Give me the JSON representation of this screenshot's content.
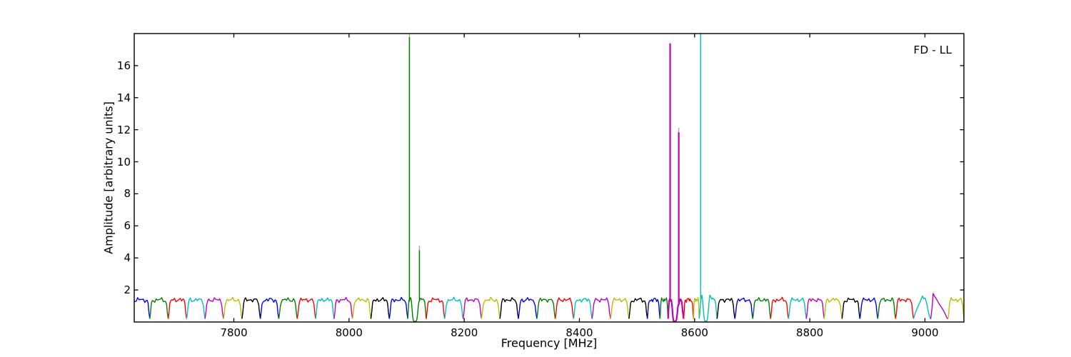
{
  "corner_label": "FD - LL",
  "chart_data": {
    "type": "line",
    "title": "",
    "xlabel": "Frequency [MHz]",
    "ylabel": "Amplitude [arbitrary units]",
    "xlim": [
      7627,
      9067.6
    ],
    "ylim": [
      0,
      18
    ],
    "xticks": [
      7800,
      8000,
      8200,
      8400,
      8600,
      8800,
      9000
    ],
    "yticks": [
      2,
      4,
      6,
      8,
      10,
      12,
      14,
      16
    ],
    "grid": false,
    "legend_position": "none",
    "tick_direction": "in",
    "frame_color": "#000000",
    "palette": {
      "b": "#0000ff",
      "g": "#008000",
      "r": "#ff0000",
      "c": "#00bfbf",
      "m": "#bf00bf",
      "y": "#bdbd00",
      "k": "#000000",
      "gray": "#b3b3b3"
    },
    "subband_width_mhz": 32,
    "baseline_amplitude": 1.4,
    "band_profile_normal": [
      [
        0,
        0.2
      ],
      [
        0.04,
        0.55
      ],
      [
        0.09,
        1.12
      ],
      [
        0.14,
        1.32
      ],
      [
        0.2,
        1.4
      ],
      [
        0.27,
        1.32
      ],
      [
        0.34,
        1.42
      ],
      [
        0.42,
        1.35
      ],
      [
        0.5,
        1.43
      ],
      [
        0.58,
        1.36
      ],
      [
        0.65,
        1.42
      ],
      [
        0.73,
        1.33
      ],
      [
        0.8,
        1.4
      ],
      [
        0.86,
        1.3
      ],
      [
        0.91,
        1.1
      ],
      [
        0.95,
        0.6
      ],
      [
        1,
        0.2
      ]
    ],
    "profiles_custom": {
      "saw_c": [
        [
          0,
          0.2
        ],
        [
          0.1,
          0.55
        ],
        [
          0.25,
          0.95
        ],
        [
          0.4,
          1.3
        ],
        [
          0.52,
          1.62
        ],
        [
          0.6,
          1.45
        ],
        [
          0.68,
          1.5
        ],
        [
          0.78,
          1.1
        ],
        [
          0.85,
          0.7
        ],
        [
          0.93,
          0.35
        ],
        [
          1,
          0.18
        ]
      ],
      "saw_m": [
        [
          0,
          0.2
        ],
        [
          0.08,
          0.9
        ],
        [
          0.14,
          1.78
        ],
        [
          0.22,
          1.6
        ],
        [
          0.32,
          1.45
        ],
        [
          0.45,
          1.2
        ],
        [
          0.6,
          0.95
        ],
        [
          0.72,
          0.75
        ],
        [
          0.82,
          0.55
        ],
        [
          0.92,
          0.3
        ],
        [
          1,
          0.18
        ]
      ]
    },
    "spiky_band_points": {
      "spiky_g": [
        [
          8102,
          0.2
        ],
        [
          8102.6,
          0.6
        ],
        [
          8103.4,
          1.15
        ],
        [
          8104.2,
          1.38
        ],
        [
          8104.8,
          1.35
        ],
        [
          8104.8,
          17.75
        ],
        [
          8104.8,
          1.3
        ],
        [
          8105.6,
          1.42
        ],
        [
          8106.6,
          1.52
        ],
        [
          8107.6,
          1.45
        ],
        [
          8108.4,
          1.25
        ],
        [
          8109.4,
          0.8
        ],
        [
          8110.6,
          0.3
        ],
        [
          8112,
          0.07
        ],
        [
          8114,
          0.03
        ],
        [
          8116,
          0.04
        ],
        [
          8117.6,
          0.12
        ],
        [
          8119,
          0.5
        ],
        [
          8120.4,
          1.05
        ],
        [
          8121.4,
          1.28
        ],
        [
          8122.2,
          1.3
        ],
        [
          8122.2,
          4.45
        ],
        [
          8122.2,
          1.3
        ],
        [
          8123.2,
          1.42
        ],
        [
          8124.6,
          1.48
        ],
        [
          8126.4,
          1.4
        ],
        [
          8128.2,
          1.44
        ],
        [
          8130,
          1.38
        ],
        [
          8131.4,
          1.25
        ],
        [
          8132.6,
          0.85
        ],
        [
          8133.4,
          0.45
        ],
        [
          8134,
          0.2
        ]
      ],
      "spiky_m": [
        [
          8554,
          0.2
        ],
        [
          8554.8,
          0.75
        ],
        [
          8555.6,
          1.3
        ],
        [
          8556.6,
          1.42
        ],
        [
          8557.5,
          1.4
        ],
        [
          8557.5,
          17.35
        ],
        [
          8557.5,
          1.35
        ],
        [
          8558.4,
          1.3
        ],
        [
          8559.4,
          1.38
        ],
        [
          8560.4,
          1.15
        ],
        [
          8561.4,
          0.75
        ],
        [
          8562.4,
          0.3
        ],
        [
          8563.6,
          0.06
        ],
        [
          8565.4,
          0.03
        ],
        [
          8567.2,
          0.05
        ],
        [
          8568.6,
          0.15
        ],
        [
          8569.8,
          0.5
        ],
        [
          8571,
          0.95
        ],
        [
          8572,
          1.1
        ],
        [
          8572.5,
          1.1
        ],
        [
          8572.5,
          11.8
        ],
        [
          8572.5,
          1.1
        ],
        [
          8573.6,
          1.25
        ],
        [
          8575,
          1.42
        ],
        [
          8576.6,
          1.38
        ],
        [
          8578,
          1.2
        ],
        [
          8579.2,
          0.7
        ],
        [
          8581,
          0.2
        ]
      ],
      "spiky_c": [
        [
          8608,
          0.2
        ],
        [
          8609,
          0.55
        ],
        [
          8610,
          1.1
        ],
        [
          8610.5,
          1.25
        ],
        [
          8610.5,
          18.6
        ],
        [
          8610.5,
          1.25
        ],
        [
          8611.5,
          1.55
        ],
        [
          8612.5,
          1.68
        ],
        [
          8613.5,
          1.45
        ],
        [
          8614.5,
          1.05
        ],
        [
          8615.8,
          0.5
        ],
        [
          8617,
          0.12
        ],
        [
          8619,
          0.04
        ],
        [
          8621,
          0.06
        ],
        [
          8622.4,
          0.2
        ],
        [
          8623.8,
          0.7
        ],
        [
          8625.2,
          1.3
        ],
        [
          8626.6,
          1.68
        ],
        [
          8628,
          1.58
        ],
        [
          8629.6,
          1.42
        ],
        [
          8631.4,
          1.5
        ],
        [
          8633.2,
          1.44
        ],
        [
          8635,
          1.38
        ],
        [
          8636.4,
          1.2
        ],
        [
          8637.6,
          0.75
        ],
        [
          8639,
          0.2
        ]
      ]
    },
    "gray_tips": [
      {
        "f": 8104.8,
        "v0": 1.4,
        "v1": 18.6
      },
      {
        "f": 8122.2,
        "v0": 1.3,
        "v1": 4.78
      },
      {
        "f": 8572.5,
        "v0": 1.1,
        "v1": 12.12
      }
    ],
    "spike_features": [
      {
        "freq": 8105,
        "amplitude": 17.8,
        "color": "g",
        "clipped": false
      },
      {
        "freq": 8122,
        "amplitude": 4.5,
        "color": "g",
        "clipped": false
      },
      {
        "freq": 8557,
        "amplitude": 17.4,
        "color": "m",
        "clipped": false
      },
      {
        "freq": 8572,
        "amplitude": 11.8,
        "color": "m",
        "clipped": false
      },
      {
        "freq": 8610,
        "amplitude": 18,
        "color": "c",
        "clipped": true
      }
    ],
    "bands": [
      [
        "b",
        7622,
        7654,
        "n"
      ],
      [
        "g",
        7654,
        7686,
        "n"
      ],
      [
        "r",
        7686,
        7718,
        "n"
      ],
      [
        "c",
        7718,
        7750,
        "n"
      ],
      [
        "m",
        7750,
        7782,
        "n"
      ],
      [
        "y",
        7782,
        7814,
        "n"
      ],
      [
        "k",
        7814,
        7846,
        "n"
      ],
      [
        "b",
        7846,
        7878,
        "n"
      ],
      [
        "g",
        7878,
        7910,
        "n"
      ],
      [
        "r",
        7910,
        7942,
        "n"
      ],
      [
        "c",
        7942,
        7974,
        "n"
      ],
      [
        "m",
        7974,
        8006,
        "n"
      ],
      [
        "y",
        8006,
        8038,
        "n"
      ],
      [
        "k",
        8038,
        8070,
        "n"
      ],
      [
        "b",
        8070,
        8102,
        "n"
      ],
      [
        "g",
        8102,
        8134,
        "spiky_g"
      ],
      [
        "r",
        8134,
        8166,
        "n"
      ],
      [
        "c",
        8166,
        8198,
        "n"
      ],
      [
        "m",
        8198,
        8230,
        "n"
      ],
      [
        "y",
        8230,
        8262,
        "n"
      ],
      [
        "k",
        8262,
        8294,
        "n"
      ],
      [
        "b",
        8294,
        8326,
        "n"
      ],
      [
        "g",
        8326,
        8358,
        "n"
      ],
      [
        "r",
        8358,
        8390,
        "n"
      ],
      [
        "c",
        8390,
        8422,
        "n"
      ],
      [
        "m",
        8422,
        8454,
        "n"
      ],
      [
        "y",
        8454,
        8486,
        "n"
      ],
      [
        "k",
        8486,
        8518,
        "n"
      ],
      [
        "b",
        8518,
        8540,
        "n"
      ],
      [
        "g",
        8540,
        8554,
        "n"
      ],
      [
        "m",
        8554,
        8581,
        "spiky_m"
      ],
      [
        "r",
        8581,
        8598,
        "n"
      ],
      [
        "y",
        8598,
        8608,
        "n"
      ],
      [
        "c",
        8608,
        8639,
        "spiky_c"
      ],
      [
        "k",
        8639,
        8670,
        "n"
      ],
      [
        "b",
        8670,
        8701,
        "n"
      ],
      [
        "g",
        8701,
        8732,
        "n"
      ],
      [
        "r",
        8732,
        8763,
        "n"
      ],
      [
        "c",
        8763,
        8794,
        "n"
      ],
      [
        "m",
        8794,
        8825,
        "n"
      ],
      [
        "y",
        8825,
        8856,
        "n"
      ],
      [
        "k",
        8856,
        8887,
        "n"
      ],
      [
        "b",
        8887,
        8918,
        "n"
      ],
      [
        "g",
        8918,
        8949,
        "n"
      ],
      [
        "r",
        8949,
        8980,
        "n"
      ],
      [
        "c",
        8980,
        9010,
        "saw_c"
      ],
      [
        "m",
        9010,
        9040,
        "saw_m"
      ],
      [
        "y",
        9040,
        9068,
        "n"
      ]
    ]
  }
}
